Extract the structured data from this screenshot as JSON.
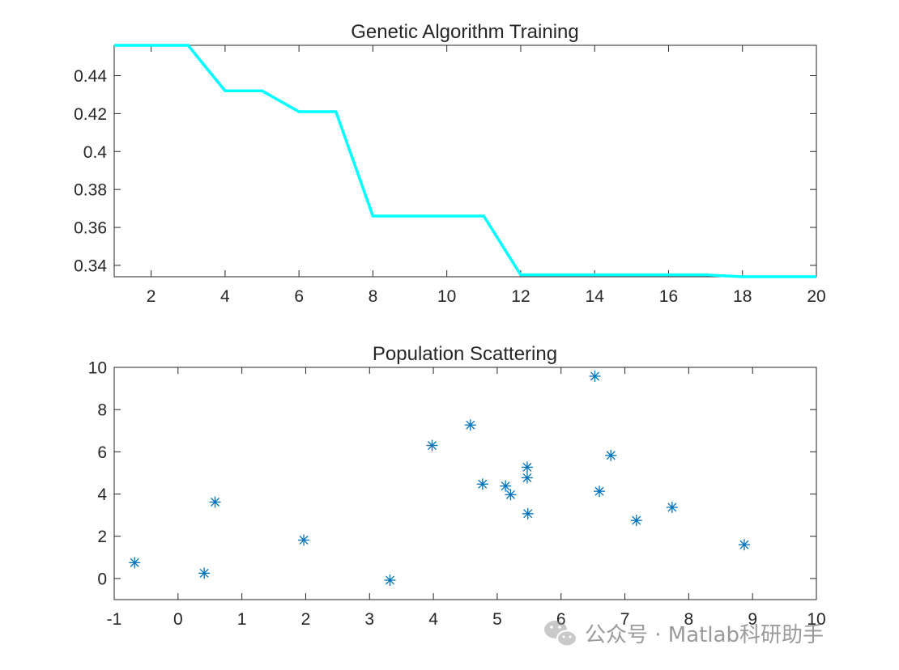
{
  "watermark": "公众号 · Matlab科研助手",
  "chart_data": [
    {
      "type": "line",
      "title": "Genetic Algorithm Training",
      "xlim": [
        1,
        20
      ],
      "ylim": [
        0.334,
        0.456
      ],
      "xticks": [
        2,
        4,
        6,
        8,
        10,
        12,
        14,
        16,
        18,
        20
      ],
      "yticks": [
        0.34,
        0.36,
        0.38,
        0.4,
        0.42,
        0.44
      ],
      "xticklabels": [
        "2",
        "4",
        "6",
        "8",
        "10",
        "12",
        "14",
        "16",
        "18",
        "20"
      ],
      "yticklabels": [
        "0.34",
        "0.36",
        "0.38",
        "0.4",
        "0.42",
        "0.44"
      ],
      "color": "#00FFFF",
      "series": [
        {
          "x": [
            1,
            2,
            3,
            4,
            5,
            6,
            7,
            8,
            9,
            10,
            11,
            12,
            13,
            14,
            15,
            16,
            17,
            18,
            19,
            20
          ],
          "values": [
            0.456,
            0.456,
            0.456,
            0.432,
            0.432,
            0.421,
            0.421,
            0.366,
            0.366,
            0.366,
            0.366,
            0.335,
            0.335,
            0.335,
            0.335,
            0.335,
            0.335,
            0.334,
            0.334,
            0.334
          ]
        }
      ],
      "grid": false
    },
    {
      "type": "scatter",
      "title": "Population Scattering",
      "xlim": [
        -1,
        10
      ],
      "ylim": [
        -1,
        10
      ],
      "xticks": [
        -1,
        0,
        1,
        2,
        3,
        4,
        5,
        6,
        7,
        8,
        9,
        10
      ],
      "yticks": [
        0,
        2,
        4,
        6,
        8,
        10
      ],
      "xticklabels": [
        "-1",
        "0",
        "1",
        "2",
        "3",
        "4",
        "5",
        "6",
        "7",
        "8",
        "9",
        "10"
      ],
      "yticklabels": [
        "0",
        "2",
        "4",
        "6",
        "8",
        "10"
      ],
      "marker": "asterisk",
      "color": "#0072BD",
      "points": [
        {
          "x": -0.68,
          "y": 0.75
        },
        {
          "x": 0.41,
          "y": 0.25
        },
        {
          "x": 0.58,
          "y": 3.62
        },
        {
          "x": 1.97,
          "y": 1.82
        },
        {
          "x": 3.32,
          "y": -0.08
        },
        {
          "x": 3.98,
          "y": 6.3
        },
        {
          "x": 4.58,
          "y": 7.27
        },
        {
          "x": 4.77,
          "y": 4.47
        },
        {
          "x": 5.13,
          "y": 4.38
        },
        {
          "x": 5.21,
          "y": 3.97
        },
        {
          "x": 5.47,
          "y": 5.27
        },
        {
          "x": 5.47,
          "y": 4.77
        },
        {
          "x": 5.48,
          "y": 3.07
        },
        {
          "x": 6.53,
          "y": 9.58
        },
        {
          "x": 6.6,
          "y": 4.13
        },
        {
          "x": 6.78,
          "y": 5.83
        },
        {
          "x": 7.18,
          "y": 2.75
        },
        {
          "x": 7.74,
          "y": 3.37
        },
        {
          "x": 8.87,
          "y": 1.6
        }
      ],
      "grid": false
    }
  ]
}
